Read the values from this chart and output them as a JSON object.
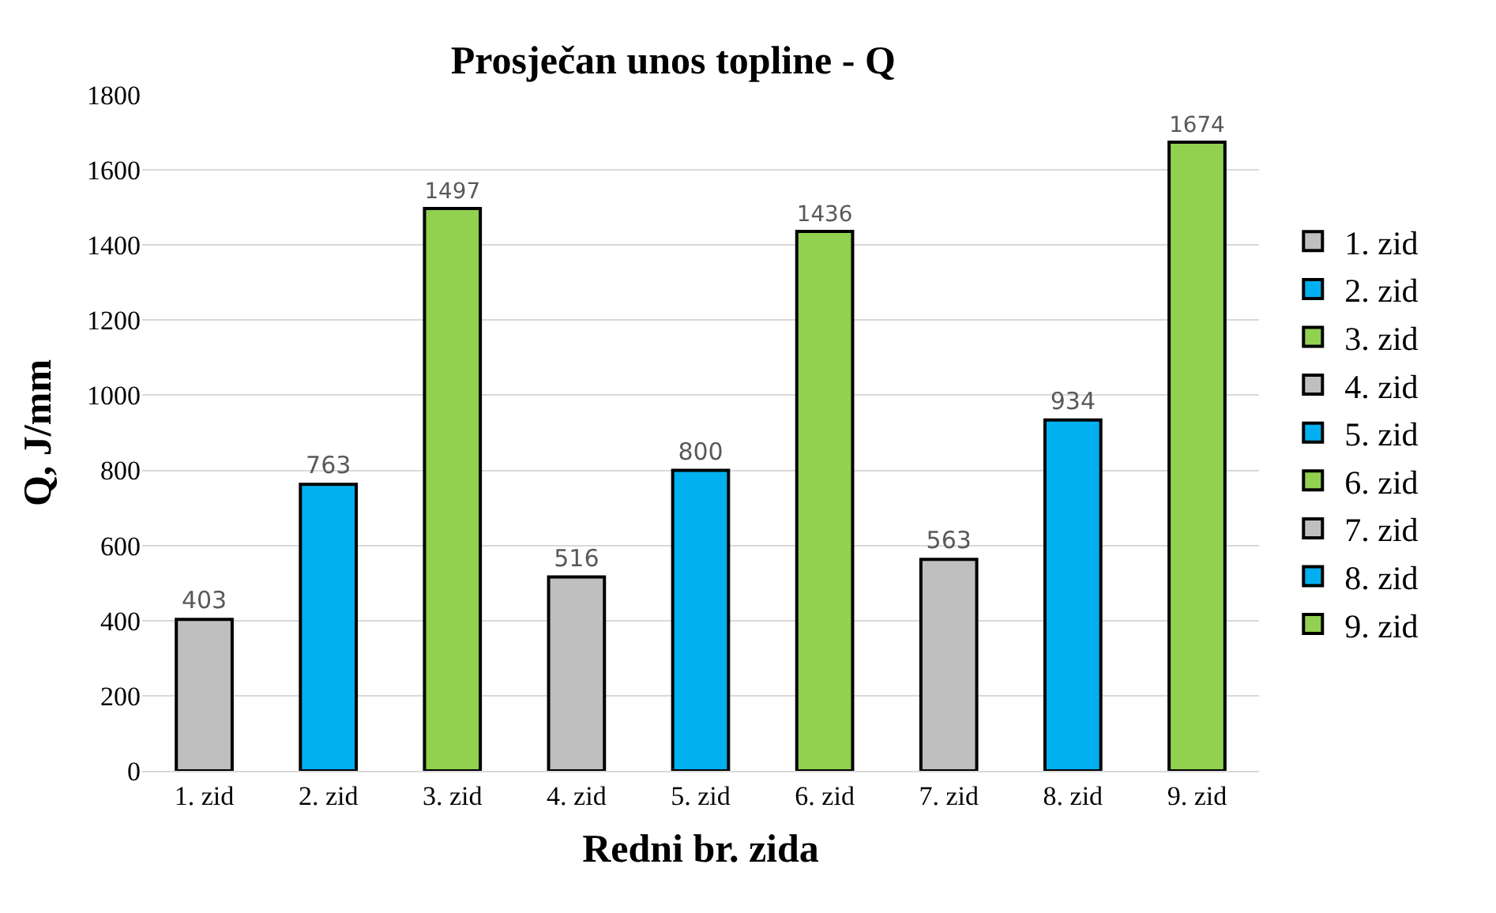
{
  "chart_data": {
    "type": "bar",
    "title": "Prosječan unos topline - Q",
    "xlabel": "Redni br. zida",
    "ylabel": "Q, J/mm",
    "categories": [
      "1. zid",
      "2. zid",
      "3. zid",
      "4. zid",
      "5. zid",
      "6. zid",
      "7. zid",
      "8. zid",
      "9. zid"
    ],
    "series": [
      {
        "name": "1. zid",
        "color": "#bfbfbf",
        "values": [
          403,
          null,
          null,
          null,
          null,
          null,
          null,
          null,
          null
        ]
      },
      {
        "name": "2. zid",
        "color": "#00b0f0",
        "values": [
          null,
          763,
          null,
          null,
          null,
          null,
          null,
          null,
          null
        ]
      },
      {
        "name": "3. zid",
        "color": "#92d050",
        "values": [
          null,
          null,
          1497,
          null,
          null,
          null,
          null,
          null,
          null
        ]
      },
      {
        "name": "4. zid",
        "color": "#bfbfbf",
        "values": [
          null,
          null,
          null,
          516,
          null,
          null,
          null,
          null,
          null
        ]
      },
      {
        "name": "5. zid",
        "color": "#00b0f0",
        "values": [
          null,
          null,
          null,
          null,
          800,
          null,
          null,
          null,
          null
        ]
      },
      {
        "name": "6. zid",
        "color": "#92d050",
        "values": [
          null,
          null,
          null,
          null,
          null,
          1436,
          null,
          null,
          null
        ]
      },
      {
        "name": "7. zid",
        "color": "#bfbfbf",
        "values": [
          null,
          null,
          null,
          null,
          null,
          null,
          563,
          null,
          null
        ]
      },
      {
        "name": "8. zid",
        "color": "#00b0f0",
        "values": [
          null,
          null,
          null,
          null,
          null,
          null,
          null,
          934,
          null
        ]
      },
      {
        "name": "9. zid",
        "color": "#92d050",
        "values": [
          null,
          null,
          null,
          null,
          null,
          null,
          null,
          null,
          1674
        ]
      }
    ],
    "ylim": [
      0,
      1800
    ],
    "yticks": [
      0,
      200,
      400,
      600,
      800,
      1000,
      1200,
      1400,
      1600,
      1800
    ],
    "grid": "y",
    "legend": "right",
    "data_labels": true
  }
}
